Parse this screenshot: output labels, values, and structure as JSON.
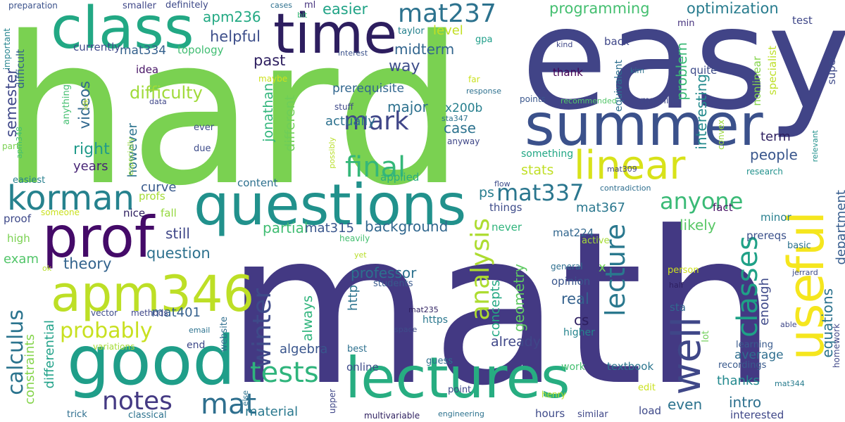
{
  "words": [
    {
      "text": "math",
      "color": "#433983"
    },
    {
      "text": "hard",
      "color": "#7ad151"
    },
    {
      "text": "easy",
      "color": "#414487"
    },
    {
      "text": "class",
      "color": "#22a884"
    },
    {
      "text": "time",
      "color": "#2d1e5f"
    },
    {
      "text": "summer",
      "color": "#3b518b"
    },
    {
      "text": "questions",
      "color": "#21918c"
    },
    {
      "text": "good",
      "color": "#1f9e89"
    },
    {
      "text": "lectures",
      "color": "#27ad81"
    },
    {
      "text": "useful",
      "color": "#f5e61e"
    },
    {
      "text": "prof",
      "color": "#440a68"
    },
    {
      "text": "apm346",
      "color": "#bddf26"
    },
    {
      "text": "korman",
      "color": "#26828e"
    },
    {
      "text": "linear",
      "color": "#d8e219"
    },
    {
      "text": "well",
      "color": "#3f4788"
    },
    {
      "text": "mat237",
      "color": "#2c728e"
    },
    {
      "text": "mark",
      "color": "#404688"
    },
    {
      "text": "final",
      "color": "#35b779"
    },
    {
      "text": "tests",
      "color": "#2fb47c"
    },
    {
      "text": "mat",
      "color": "#2e6f8e"
    },
    {
      "text": "notes",
      "color": "#443983"
    },
    {
      "text": "winter",
      "color": "#3e4a89"
    },
    {
      "text": "lecture",
      "color": "#2a788e"
    },
    {
      "text": "classes",
      "color": "#1fa187"
    },
    {
      "text": "analysis",
      "color": "#addc30"
    },
    {
      "text": "mat337",
      "color": "#2a768e"
    },
    {
      "text": "anyone",
      "color": "#3aba76"
    },
    {
      "text": "probably",
      "color": "#c8e020"
    },
    {
      "text": "calculus",
      "color": "#2b748e"
    },
    {
      "text": "difficulty",
      "color": "#a0da39"
    },
    {
      "text": "optimization",
      "color": "#287c8e"
    },
    {
      "text": "programming",
      "color": "#44bf70"
    },
    {
      "text": "easier",
      "color": "#20a386"
    },
    {
      "text": "helpful",
      "color": "#3d4e8a"
    },
    {
      "text": "apm236",
      "color": "#23a983"
    },
    {
      "text": "mat334",
      "color": "#34618d"
    },
    {
      "text": "midterm",
      "color": "#32658e"
    },
    {
      "text": "past",
      "color": "#2d1e5f"
    },
    {
      "text": "level",
      "color": "#c2df23"
    },
    {
      "text": "way",
      "color": "#3d4d8a"
    },
    {
      "text": "prerequisite",
      "color": "#31668e"
    },
    {
      "text": "major",
      "color": "#2d718e"
    },
    {
      "text": "actually",
      "color": "#2c718e"
    },
    {
      "text": "case",
      "color": "#2c728e"
    },
    {
      "text": "x200b",
      "color": "#277f8e"
    },
    {
      "text": "currently",
      "color": "#3e4989"
    },
    {
      "text": "topology",
      "color": "#40bd72"
    },
    {
      "text": "idea",
      "color": "#471365"
    },
    {
      "text": "videos",
      "color": "#31688e"
    },
    {
      "text": "semester",
      "color": "#3f4889"
    },
    {
      "text": "right",
      "color": "#1f9a8a"
    },
    {
      "text": "years",
      "color": "#482576"
    },
    {
      "text": "however",
      "color": "#2c738e"
    },
    {
      "text": "jonathan",
      "color": "#31b57b"
    },
    {
      "text": "different",
      "color": "#6ece58"
    },
    {
      "text": "problem",
      "color": "#3aba76"
    },
    {
      "text": "interesting",
      "color": "#238a8d"
    },
    {
      "text": "department",
      "color": "#365c8d"
    },
    {
      "text": "people",
      "color": "#39568c"
    },
    {
      "text": "term",
      "color": "#2d1e5f"
    },
    {
      "text": "stats",
      "color": "#c0df25"
    },
    {
      "text": "ps",
      "color": "#287d8e"
    },
    {
      "text": "mat367",
      "color": "#2a778e"
    },
    {
      "text": "curve",
      "color": "#38598c"
    },
    {
      "text": "still",
      "color": "#3f4788"
    },
    {
      "text": "question",
      "color": "#2d718e"
    },
    {
      "text": "theory",
      "color": "#33638d"
    },
    {
      "text": "exam",
      "color": "#52c569"
    },
    {
      "text": "background",
      "color": "#31678e"
    },
    {
      "text": "partial",
      "color": "#40bd72"
    },
    {
      "text": "mat315",
      "color": "#39568c"
    },
    {
      "text": "likely",
      "color": "#58c765"
    },
    {
      "text": "professor",
      "color": "#2c718e"
    },
    {
      "text": "real",
      "color": "#34618d"
    },
    {
      "text": "cs",
      "color": "#2d1e5f"
    },
    {
      "text": "geometry",
      "color": "#5ec962"
    },
    {
      "text": "concepts",
      "color": "#23a983"
    },
    {
      "text": "always",
      "color": "#2fb47c"
    },
    {
      "text": "http",
      "color": "#2c738e"
    },
    {
      "text": "enough",
      "color": "#3e4989"
    },
    {
      "text": "equations",
      "color": "#2c738e"
    },
    {
      "text": "differential",
      "color": "#1fa188"
    },
    {
      "text": "constraints",
      "color": "#84d44b"
    },
    {
      "text": "mat401",
      "color": "#35608d"
    },
    {
      "text": "algebra",
      "color": "#39558c"
    },
    {
      "text": "already",
      "color": "#3f4788"
    },
    {
      "text": "thanks",
      "color": "#23898e"
    },
    {
      "text": "intro",
      "color": "#2d708e"
    },
    {
      "text": "even",
      "color": "#2c738e"
    },
    {
      "text": "interested",
      "color": "#3f4788"
    },
    {
      "text": "material",
      "color": "#2a788e"
    },
    {
      "text": "online",
      "color": "#3e4a89"
    },
    {
      "text": "average",
      "color": "#2e6e8e"
    },
    {
      "text": "textbook",
      "color": "#2b758e"
    },
    {
      "text": "minor",
      "color": "#277f8e"
    },
    {
      "text": "fact",
      "color": "#471365"
    },
    {
      "text": "prereqs",
      "color": "#3b518b"
    },
    {
      "text": "something",
      "color": "#22a785"
    },
    {
      "text": "opinion",
      "color": "#39568c"
    },
    {
      "text": "never",
      "color": "#2fb47c"
    },
    {
      "text": "things",
      "color": "#3e4c8a"
    },
    {
      "text": "mat224",
      "color": "#31668e"
    },
    {
      "text": "applied",
      "color": "#28ae80"
    },
    {
      "text": "content",
      "color": "#2d708e"
    },
    {
      "text": "nice",
      "color": "#2d1e5f"
    },
    {
      "text": "profs",
      "color": "#a5db36"
    },
    {
      "text": "fall",
      "color": "#95d840"
    },
    {
      "text": "proof",
      "color": "#3e4989"
    },
    {
      "text": "high",
      "color": "#7ad151"
    },
    {
      "text": "someone",
      "color": "#cae11f"
    },
    {
      "text": "easiest",
      "color": "#27808e"
    },
    {
      "text": "apm348",
      "color": "#44bf70"
    },
    {
      "text": "part",
      "color": "#7ad151"
    },
    {
      "text": "difficult",
      "color": "#34618d"
    },
    {
      "text": "important",
      "color": "#25848e"
    },
    {
      "text": "preparation",
      "color": "#3b528b"
    },
    {
      "text": "smaller",
      "color": "#3f4788"
    },
    {
      "text": "definitely",
      "color": "#3e4a89"
    },
    {
      "text": "cases",
      "color": "#2d708e"
    },
    {
      "text": "ml",
      "color": "#46327e"
    },
    {
      "text": "bit",
      "color": "#3aba76"
    },
    {
      "text": "taylor",
      "color": "#26828e"
    },
    {
      "text": "gpa",
      "color": "#1f9e89"
    },
    {
      "text": "interest",
      "color": "#3b528b"
    },
    {
      "text": "test",
      "color": "#3f4788"
    },
    {
      "text": "min",
      "color": "#46327e"
    },
    {
      "text": "back",
      "color": "#3f4788"
    },
    {
      "text": "equivalent",
      "color": "#2e6f8e"
    },
    {
      "text": "nonlinear",
      "color": "#84d44b"
    },
    {
      "text": "specialist",
      "color": "#bddf26"
    },
    {
      "text": "super",
      "color": "#3e4a89"
    },
    {
      "text": "kind",
      "color": "#3f4788"
    },
    {
      "text": "kim",
      "color": "#2c728e"
    },
    {
      "text": "thank",
      "color": "#440154"
    },
    {
      "text": "quite",
      "color": "#3e4c8a"
    },
    {
      "text": "machine",
      "color": "#3f4788"
    },
    {
      "text": "recommended",
      "color": "#52c569"
    },
    {
      "text": "points",
      "color": "#39568c"
    },
    {
      "text": "convex",
      "color": "#9bd93c"
    },
    {
      "text": "mat309",
      "color": "#414487"
    },
    {
      "text": "research",
      "color": "#21918c"
    },
    {
      "text": "relevant",
      "color": "#21918c"
    },
    {
      "text": "flow",
      "color": "#3e4c8a"
    },
    {
      "text": "contradiction",
      "color": "#2e6e8e"
    },
    {
      "text": "active",
      "color": "#a5db36"
    },
    {
      "text": "general",
      "color": "#2e6e8e"
    },
    {
      "text": "higher",
      "color": "#25848e"
    },
    {
      "text": "person",
      "color": "#cde11d"
    },
    {
      "text": "jerrard",
      "color": "#3e4c8a"
    },
    {
      "text": "basic",
      "color": "#2c728e"
    },
    {
      "text": "half",
      "color": "#2d1e5f"
    },
    {
      "text": "sta",
      "color": "#31678e"
    },
    {
      "text": "lot",
      "color": "#6ece58"
    },
    {
      "text": "able",
      "color": "#3f4788"
    },
    {
      "text": "homework",
      "color": "#3f4788"
    },
    {
      "text": "learning",
      "color": "#38598c"
    },
    {
      "text": "recordings",
      "color": "#38598c"
    },
    {
      "text": "mat344",
      "color": "#287c8e"
    },
    {
      "text": "load",
      "color": "#3e4989"
    },
    {
      "text": "similar",
      "color": "#3f4788"
    },
    {
      "text": "henry",
      "color": "#b8de29"
    },
    {
      "text": "edit",
      "color": "#cae11f"
    },
    {
      "text": "work",
      "color": "#44bf70"
    },
    {
      "text": "hours",
      "color": "#3e4a89"
    },
    {
      "text": "engineering",
      "color": "#2c728e"
    },
    {
      "text": "multivariable",
      "color": "#2d1e5f"
    },
    {
      "text": "point",
      "color": "#3e4989"
    },
    {
      "text": "guess",
      "color": "#2d708e"
    },
    {
      "text": "best",
      "color": "#2d708e"
    },
    {
      "text": "space",
      "color": "#3e4c8a"
    },
    {
      "text": "https",
      "color": "#2a778e"
    },
    {
      "text": "mat235",
      "color": "#2d1e5f"
    },
    {
      "text": "students",
      "color": "#38598c"
    },
    {
      "text": "yet",
      "color": "#b8de29"
    },
    {
      "text": "heavily",
      "color": "#44bf70"
    },
    {
      "text": "upper",
      "color": "#3f4788"
    },
    {
      "text": "else",
      "color": "#2c728e"
    },
    {
      "text": "website",
      "color": "#2e6e8e"
    },
    {
      "text": "email",
      "color": "#2c728e"
    },
    {
      "text": "end",
      "color": "#3e4989"
    },
    {
      "text": "variations",
      "color": "#a5db36"
    },
    {
      "text": "methods",
      "color": "#3f4788"
    },
    {
      "text": "vector",
      "color": "#3e4c8a"
    },
    {
      "text": "ok",
      "color": "#b8de29"
    },
    {
      "text": "trick",
      "color": "#2e6e8e"
    },
    {
      "text": "classical",
      "color": "#2c728e"
    },
    {
      "text": "due",
      "color": "#3e4c8a"
    },
    {
      "text": "ever",
      "color": "#3e4c8a"
    },
    {
      "text": "especially",
      "color": "#95d840"
    },
    {
      "text": "anything",
      "color": "#44bf70"
    },
    {
      "text": "data",
      "color": "#3f4788"
    },
    {
      "text": "idk",
      "color": "#b8de29"
    },
    {
      "text": "maybe",
      "color": "#cde11d"
    },
    {
      "text": "response",
      "color": "#2d708e"
    },
    {
      "text": "far",
      "color": "#cae11f"
    },
    {
      "text": "stuff",
      "color": "#3e4989"
    },
    {
      "text": "sta347",
      "color": "#2c728e"
    },
    {
      "text": "anyway",
      "color": "#3f4788"
    },
    {
      "text": "possibly",
      "color": "#b8de29"
    },
    {
      "text": "x",
      "color": "#6ece58"
    }
  ]
}
